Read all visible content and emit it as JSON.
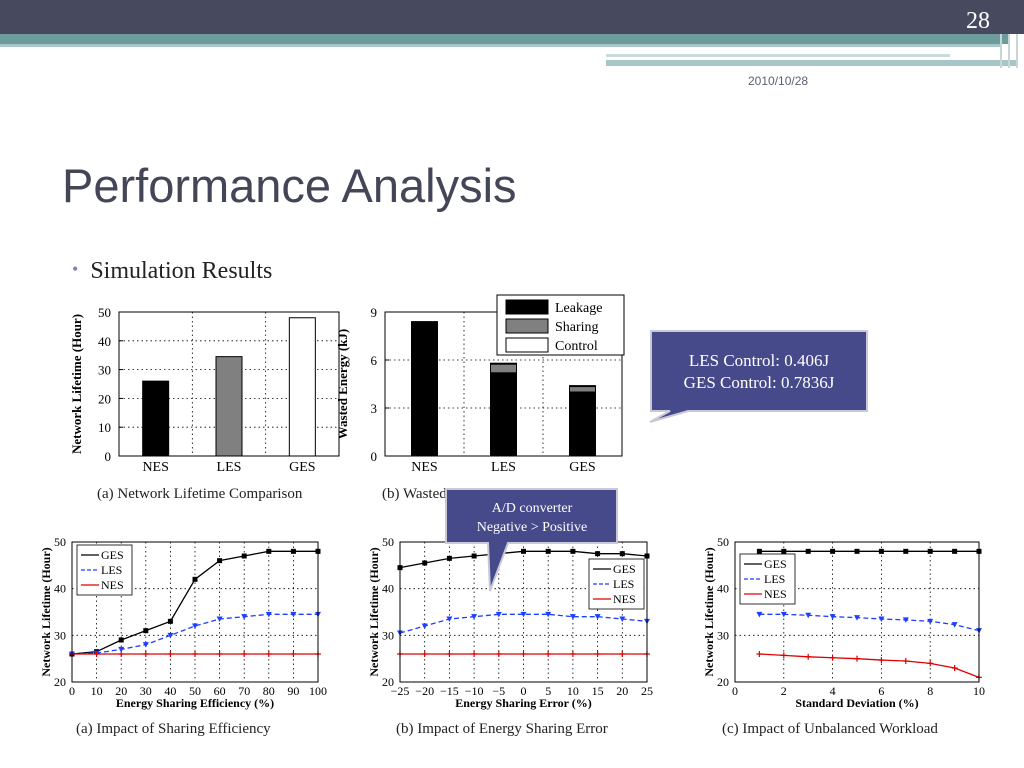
{
  "slide": {
    "number": "28",
    "date": "2010/10/28",
    "title": "Performance Analysis",
    "bullet": "Simulation Results",
    "callout1": [
      "LES Control: 0.406J",
      "GES Control: 0.7836J"
    ],
    "callout2": [
      "A/D converter",
      "Negative > Positive"
    ]
  },
  "chart_data": [
    {
      "type": "bar",
      "caption": "(a)  Network Lifetime Comparison",
      "categories": [
        "NES",
        "LES",
        "GES"
      ],
      "values": [
        26,
        34.5,
        48
      ],
      "colors": [
        "#000000",
        "#808080",
        "#ffffff"
      ],
      "ylabel": "Network Lifetime (Hour)",
      "ylim": [
        0,
        50
      ],
      "yticks": [
        0,
        10,
        20,
        30,
        40,
        50
      ],
      "grid": true
    },
    {
      "type": "bar",
      "caption": "(b)  Wasted Energy Comparison",
      "categories": [
        "NES",
        "LES",
        "GES"
      ],
      "series": [
        {
          "name": "Leakage",
          "values": [
            8.4,
            5.2,
            4.0
          ],
          "color": "#000000"
        },
        {
          "name": "Sharing",
          "values": [
            0,
            0.55,
            0.35
          ],
          "color": "#808080"
        },
        {
          "name": "Control",
          "values": [
            0,
            0.05,
            0.05
          ],
          "color": "#ffffff"
        }
      ],
      "ylabel": "Wasted Energy (kJ)",
      "ylim": [
        0,
        9
      ],
      "yticks": [
        0,
        3,
        6,
        9
      ],
      "legend": "top-right",
      "grid": true
    },
    {
      "type": "line",
      "caption": "(a)  Impact of Sharing Efficiency",
      "xlabel": "Energy Sharing Efficiency (%)",
      "ylabel": "Network Lifetime (Hour)",
      "x": [
        0,
        10,
        20,
        30,
        40,
        50,
        60,
        70,
        80,
        90,
        100
      ],
      "xlim": [
        0,
        100
      ],
      "ylim": [
        20,
        50
      ],
      "xticks": [
        0,
        10,
        20,
        30,
        40,
        50,
        60,
        70,
        80,
        90,
        100
      ],
      "yticks": [
        20,
        30,
        40,
        50
      ],
      "legend": "top-left",
      "series": [
        {
          "name": "GES",
          "values": [
            26,
            26.5,
            29,
            31,
            33,
            42,
            46,
            47,
            48,
            48,
            48
          ],
          "color": "#000000",
          "marker": "square",
          "dash": false
        },
        {
          "name": "LES",
          "values": [
            26,
            26.2,
            27,
            28,
            30,
            32,
            33.5,
            34,
            34.5,
            34.5,
            34.5
          ],
          "color": "#1f3fff",
          "marker": "triangle",
          "dash": true
        },
        {
          "name": "NES",
          "values": [
            26,
            26,
            26,
            26,
            26,
            26,
            26,
            26,
            26,
            26,
            26
          ],
          "color": "#e00000",
          "marker": "plus",
          "dash": false
        }
      ]
    },
    {
      "type": "line",
      "caption": "(b)  Impact of Energy Sharing Error",
      "xlabel": "Energy Sharing Error (%)",
      "ylabel": "Network Lifetime (Hour)",
      "x": [
        -25,
        -20,
        -15,
        -10,
        -5,
        0,
        5,
        10,
        15,
        20,
        25
      ],
      "xlim": [
        -25,
        25
      ],
      "ylim": [
        20,
        50
      ],
      "xticks": [
        -25,
        -20,
        -15,
        -10,
        -5,
        0,
        5,
        10,
        15,
        20,
        25
      ],
      "xticklabels": [
        "−25",
        "−20",
        "−15",
        "−10",
        "−5",
        "0",
        "5",
        "10",
        "15",
        "20",
        "25"
      ],
      "yticks": [
        20,
        30,
        40,
        50
      ],
      "legend": "right",
      "series": [
        {
          "name": "GES",
          "values": [
            44.5,
            45.5,
            46.5,
            47,
            47.5,
            48,
            48,
            48,
            47.5,
            47.5,
            47
          ],
          "color": "#000000",
          "marker": "square",
          "dash": false
        },
        {
          "name": "LES",
          "values": [
            30.5,
            32,
            33.5,
            34,
            34.5,
            34.5,
            34.5,
            34,
            34,
            33.5,
            33
          ],
          "color": "#1f3fff",
          "marker": "triangle",
          "dash": true
        },
        {
          "name": "NES",
          "values": [
            26,
            26,
            26,
            26,
            26,
            26,
            26,
            26,
            26,
            26,
            26
          ],
          "color": "#e00000",
          "marker": "plus",
          "dash": false
        }
      ]
    },
    {
      "type": "line",
      "caption": "(c)  Impact of Unbalanced Workload",
      "xlabel": "Standard Deviation (%)",
      "ylabel": "Network Lifetime (Hour)",
      "x": [
        1,
        2,
        3,
        4,
        5,
        6,
        7,
        8,
        9,
        10
      ],
      "xlim": [
        0,
        10
      ],
      "ylim": [
        20,
        50
      ],
      "xticks": [
        0,
        2,
        4,
        6,
        8,
        10
      ],
      "yticks": [
        20,
        30,
        40,
        50
      ],
      "legend": "left",
      "series": [
        {
          "name": "GES",
          "values": [
            48,
            48,
            48,
            48,
            48,
            48,
            48,
            48,
            48,
            48
          ],
          "color": "#000000",
          "marker": "square",
          "dash": false
        },
        {
          "name": "LES",
          "values": [
            34.5,
            34.5,
            34.3,
            34,
            33.8,
            33.5,
            33.3,
            33,
            32.3,
            31
          ],
          "color": "#1f3fff",
          "marker": "triangle",
          "dash": true
        },
        {
          "name": "NES",
          "values": [
            26,
            25.7,
            25.4,
            25.2,
            25,
            24.7,
            24.5,
            24,
            23,
            21
          ],
          "color": "#e00000",
          "marker": "plus",
          "dash": false
        }
      ]
    }
  ]
}
